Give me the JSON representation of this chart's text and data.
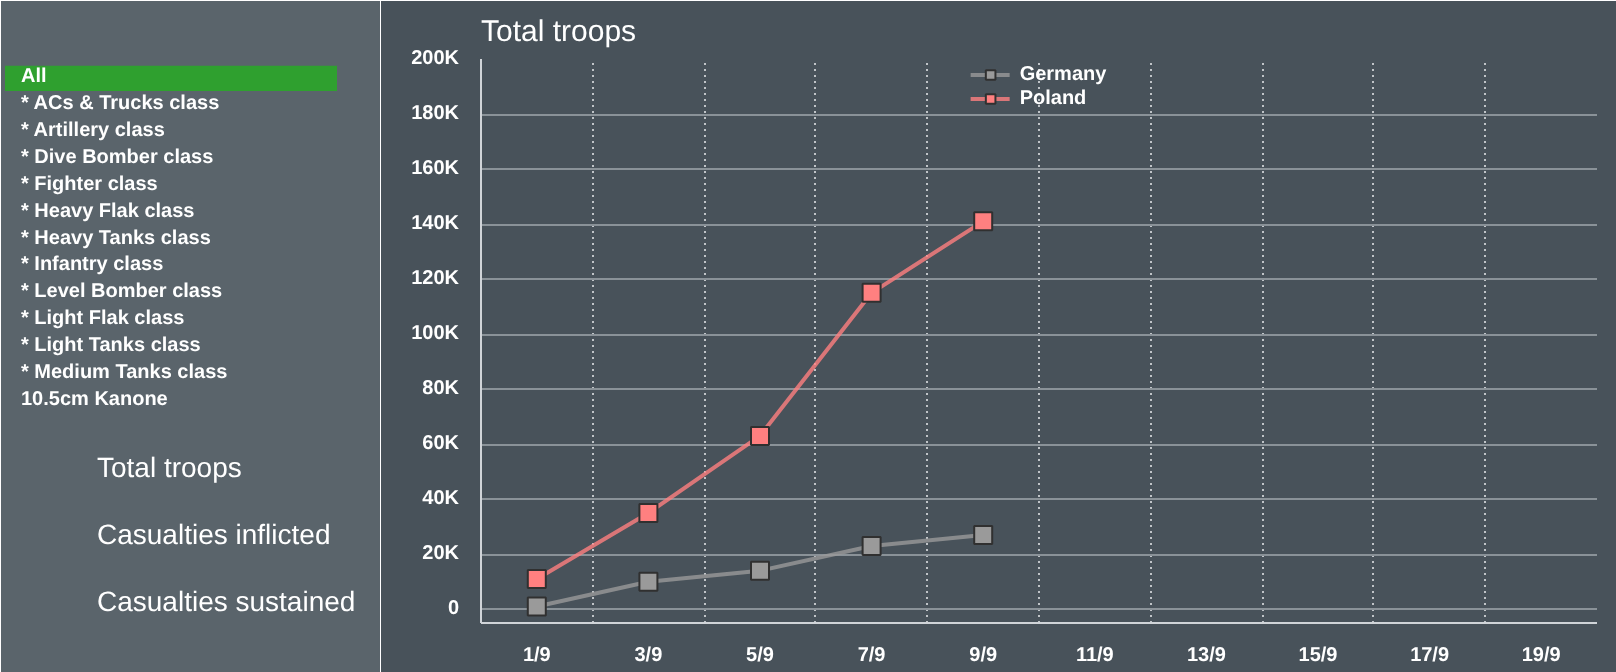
{
  "chart_data": {
    "type": "line",
    "title": "Total troops",
    "categories": [
      "1/9",
      "3/9",
      "5/9",
      "7/9",
      "9/9",
      "11/9",
      "13/9",
      "15/9",
      "17/9",
      "19/9"
    ],
    "series": [
      {
        "name": "Germany",
        "color": "#9a9a9a",
        "values": [
          1000,
          10000,
          14000,
          23000,
          27000,
          null,
          null,
          null,
          null,
          null
        ]
      },
      {
        "name": "Poland",
        "color": "#ff8080",
        "values": [
          11000,
          35000,
          63000,
          115000,
          141000,
          null,
          null,
          null,
          null,
          null
        ]
      }
    ],
    "ylim": [
      -5000,
      200000
    ],
    "yticks": [
      {
        "value": 0,
        "label": "0"
      },
      {
        "value": 20000,
        "label": "20K"
      },
      {
        "value": 40000,
        "label": "40K"
      },
      {
        "value": 60000,
        "label": "60K"
      },
      {
        "value": 80000,
        "label": "80K"
      },
      {
        "value": 100000,
        "label": "100K"
      },
      {
        "value": 120000,
        "label": "120K"
      },
      {
        "value": 140000,
        "label": "140K"
      },
      {
        "value": 160000,
        "label": "160K"
      },
      {
        "value": 180000,
        "label": "180K"
      },
      {
        "value": 200000,
        "label": "200K"
      }
    ],
    "grid": true,
    "legend": "top",
    "marker": "square",
    "line_style": "solid",
    "annotations": [
      "All",
      "* ACs & Trucks class",
      "* Artillery class",
      "* Dive Bomber class",
      "* Fighter class",
      "* Heavy Flak class",
      "* Heavy Tanks class",
      "* Infantry class",
      "* Level Bomber class",
      "* Light Flak class",
      "* Light Tanks class",
      "* Medium Tanks class",
      "10.5cm Kanone",
      "Total troops",
      "Casualties inflicted",
      "Casualties sustained"
    ]
  }
}
